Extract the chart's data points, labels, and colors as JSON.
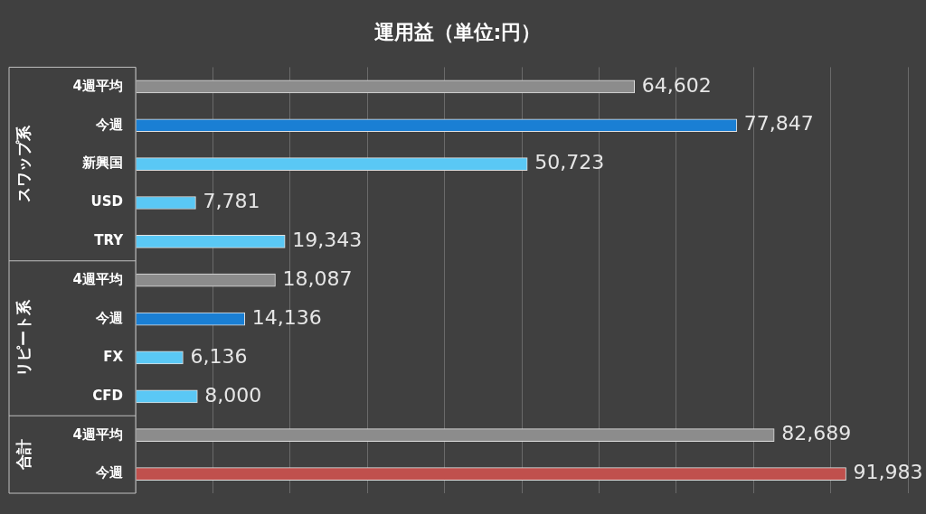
{
  "chart_data": {
    "type": "bar",
    "orientation": "horizontal",
    "title": "運用益（単位:円）",
    "categories": [
      "4週平均",
      "今週",
      "新興国",
      "USD",
      "TRY",
      "4週平均",
      "今週",
      "FX",
      "CFD",
      "4週平均",
      "今週"
    ],
    "values": [
      64602,
      77847,
      50723,
      7781,
      19343,
      18087,
      14136,
      6136,
      8000,
      82689,
      91983
    ],
    "colors": [
      "#8c8c8c",
      "#1a7fd4",
      "#5ac8f5",
      "#5ac8f5",
      "#5ac8f5",
      "#8c8c8c",
      "#1a7fd4",
      "#5ac8f5",
      "#5ac8f5",
      "#8c8c8c",
      "#c0504d"
    ],
    "value_labels": [
      "64,602",
      "77,847",
      "50,723",
      "7,781",
      "19,343",
      "18,087",
      "14,136",
      "6,136",
      "8,000",
      "82,689",
      "91,983"
    ],
    "grid": "x",
    "tick_labels": "y",
    "annotations": [
      "スワップ系",
      "リピート系",
      "合計"
    ]
  }
}
